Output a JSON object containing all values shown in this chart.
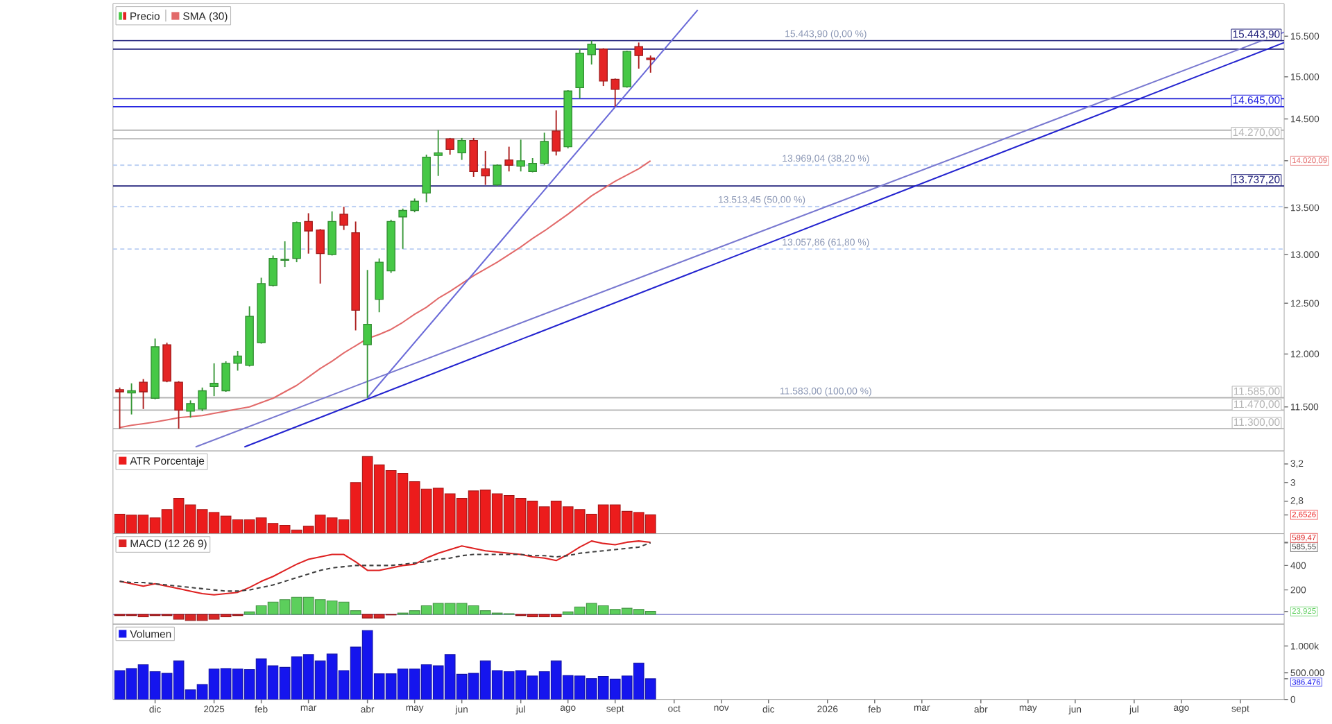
{
  "chart_data": [
    {
      "type": "candlestick",
      "x": [
        "2024-11-11",
        "2024-11-18",
        "2024-11-25",
        "2024-12-02",
        "2024-12-09",
        "2024-12-16",
        "2024-12-23",
        "2024-12-30",
        "2025-01-06",
        "2025-01-13",
        "2025-01-20",
        "2025-01-27",
        "2025-02-03",
        "2025-02-10",
        "2025-02-17",
        "2025-02-24",
        "2025-03-03",
        "2025-03-10",
        "2025-03-17",
        "2025-03-24",
        "2025-03-31",
        "2025-04-07",
        "2025-04-14",
        "2025-04-21",
        "2025-04-28",
        "2025-05-05",
        "2025-05-12",
        "2025-05-19",
        "2025-05-26",
        "2025-06-02",
        "2025-06-09",
        "2025-06-16",
        "2025-06-23",
        "2025-06-30",
        "2025-07-07",
        "2025-07-14",
        "2025-07-21",
        "2025-07-28",
        "2025-08-04",
        "2025-08-11",
        "2025-08-18",
        "2025-08-25",
        "2025-09-01",
        "2025-09-08",
        "2025-09-15",
        "2025-09-22"
      ],
      "xlim": [
        "2024-11-07",
        "2026-10-03"
      ],
      "ylim": [
        11100,
        15910
      ],
      "log": "y",
      "yticks": [
        {
          "value": 11500,
          "label": "11.500"
        },
        {
          "value": 12000,
          "label": "12.000"
        },
        {
          "value": 12500,
          "label": "12.500"
        },
        {
          "value": 13000,
          "label": "13.000"
        },
        {
          "value": 13500,
          "label": "13.500"
        },
        {
          "value": 14020.09,
          "label": "14.020,09"
        },
        {
          "value": 14500,
          "label": "14.500"
        },
        {
          "value": 15000,
          "label": "15.000"
        },
        {
          "value": 15500,
          "label": "15.500"
        }
      ],
      "tick_labels": "y",
      "legend": "top left",
      "series": [
        {
          "name": "Precio",
          "ohlc": [
            [
              11660,
              11680,
              11300,
              11640
            ],
            [
              11630,
              11720,
              11430,
              11650
            ],
            [
              11730,
              11760,
              11480,
              11640
            ],
            [
              11580,
              12150,
              11570,
              12070
            ],
            [
              12090,
              12110,
              11730,
              11740
            ],
            [
              11730,
              11740,
              11300,
              11470
            ],
            [
              11460,
              11560,
              11400,
              11530
            ],
            [
              11480,
              11680,
              11460,
              11650
            ],
            [
              11690,
              11910,
              11600,
              11720
            ],
            [
              11650,
              11930,
              11640,
              11910
            ],
            [
              11910,
              12030,
              11840,
              11980
            ],
            [
              11890,
              12470,
              11880,
              12370
            ],
            [
              12110,
              12760,
              12100,
              12700
            ],
            [
              12680,
              12990,
              12670,
              12960
            ],
            [
              12940,
              13140,
              12870,
              12950
            ],
            [
              12960,
              13350,
              12920,
              13340
            ],
            [
              13350,
              13440,
              13010,
              13250
            ],
            [
              13260,
              13270,
              12700,
              13010
            ],
            [
              13000,
              13460,
              12990,
              13350
            ],
            [
              13430,
              13510,
              13260,
              13310
            ],
            [
              13230,
              13350,
              12230,
              12430
            ],
            [
              12090,
              12840,
              11583,
              12290
            ],
            [
              12540,
              12960,
              12410,
              12920
            ],
            [
              12830,
              13370,
              12810,
              13350
            ],
            [
              13400,
              13490,
              13060,
              13470
            ],
            [
              13470,
              13600,
              13450,
              13570
            ],
            [
              13660,
              14090,
              13560,
              14060
            ],
            [
              14080,
              14370,
              13850,
              14110
            ],
            [
              14270,
              14280,
              14090,
              14150
            ],
            [
              14110,
              14280,
              14030,
              14250
            ],
            [
              14250,
              14280,
              13840,
              13900
            ],
            [
              13930,
              14130,
              13750,
              13850
            ],
            [
              13750,
              13980,
              13737.2,
              13970
            ],
            [
              14030,
              14180,
              13900,
              13970
            ],
            [
              13960,
              14260,
              13900,
              14020
            ],
            [
              13900,
              14050,
              13890,
              13990
            ],
            [
              13990,
              14340,
              13970,
              14240
            ],
            [
              14360,
              14600,
              14080,
              14130
            ],
            [
              14180,
              14840,
              14160,
              14830
            ],
            [
              14870,
              15340,
              14740,
              15290
            ],
            [
              15270,
              15443.9,
              15150,
              15400
            ],
            [
              15340,
              15350,
              14890,
              14950
            ],
            [
              14970,
              14980,
              14645,
              14850
            ],
            [
              14880,
              15320,
              14870,
              15310
            ],
            [
              15370,
              15420,
              15100,
              15260
            ],
            [
              15230,
              15260,
              15050,
              15210
            ]
          ],
          "colors": [
            "#e42424",
            "#46c846",
            "#e42424",
            "#46c846",
            "#e42424",
            "#e42424",
            "#46c846",
            "#46c846",
            "#46c846",
            "#46c846",
            "#46c846",
            "#46c846",
            "#46c846",
            "#46c846",
            "#46c846",
            "#46c846",
            "#e42424",
            "#e42424",
            "#46c846",
            "#e42424",
            "#e42424",
            "#46c846",
            "#46c846",
            "#46c846",
            "#46c846",
            "#46c846",
            "#46c846",
            "#46c846",
            "#e42424",
            "#46c846",
            "#e42424",
            "#e42424",
            "#46c846",
            "#e42424",
            "#46c846",
            "#46c846",
            "#46c846",
            "#e42424",
            "#46c846",
            "#46c846",
            "#46c846",
            "#e42424",
            "#e42424",
            "#46c846",
            "#e42424",
            "#e42424"
          ]
        },
        {
          "name": "SMA (30)",
          "type": "line",
          "color": "#e26a6a",
          "values": [
            11310,
            11330,
            11345,
            11360,
            11380,
            11400,
            11410,
            11420,
            11440,
            11460,
            11480,
            11500,
            11540,
            11580,
            11640,
            11700,
            11780,
            11860,
            11930,
            12010,
            12080,
            12150,
            12190,
            12240,
            12310,
            12390,
            12460,
            12550,
            12620,
            12700,
            12780,
            12850,
            12920,
            13000,
            13080,
            13170,
            13250,
            13340,
            13430,
            13530,
            13630,
            13710,
            13790,
            13860,
            13930,
            14020.09
          ]
        },
        {
          "type": "line",
          "color": "#6a6ad8",
          "x": [
            "2025-04-07",
            "2025-10-20"
          ],
          "values": [
            11583,
            15830
          ]
        },
        {
          "type": "line",
          "color": "#7878d0",
          "x": [
            "2024-12-26",
            "2026-10-03"
          ],
          "values": [
            11135,
            15550
          ]
        },
        {
          "type": "line",
          "color": "#2323cf",
          "x": [
            "2025-01-24",
            "2026-10-03"
          ],
          "values": [
            11135,
            15420
          ]
        }
      ],
      "ref_lines": [
        {
          "axis": "y",
          "value": 15443.9,
          "label": "15.443,90",
          "color": "#1f1f7a"
        },
        {
          "axis": "y",
          "value": 15340,
          "color": "#1f1f7a"
        },
        {
          "axis": "y",
          "value": 14740,
          "color": "#3535d8"
        },
        {
          "axis": "y",
          "value": 14645,
          "label": "14.645,00",
          "color": "#2424e0"
        },
        {
          "axis": "y",
          "value": 14370,
          "color": "#b4b4b4"
        },
        {
          "axis": "y",
          "value": 14270,
          "label": "14.270,00",
          "color": "#b4b4b4"
        },
        {
          "axis": "y",
          "value": 13969.04,
          "color": "#b8cdf2",
          "line_style": "dashed"
        },
        {
          "axis": "y",
          "value": 13737.2,
          "label": "13.737,20",
          "color": "#1f1f7a"
        },
        {
          "axis": "y",
          "value": 13513.45,
          "color": "#b8cdf2",
          "line_style": "dashed"
        },
        {
          "axis": "y",
          "value": 13057.86,
          "color": "#b8cdf2",
          "line_style": "dashed"
        },
        {
          "axis": "y",
          "value": 11585,
          "label": "11.585,00",
          "color": "#b4b4b4"
        },
        {
          "axis": "y",
          "value": 11470,
          "label": "11.470,00",
          "color": "#b4b4b4"
        },
        {
          "axis": "y",
          "value": 11300,
          "label": "11.300,00",
          "color": "#b4b4b4"
        }
      ],
      "annotations": [
        {
          "text": "15.443,90 (0,00 %)",
          "x": "2026-01-04",
          "y": 15443.9
        },
        {
          "text": "13.969,04 (38,20 %)",
          "x": "2026-01-04",
          "y": 13969.04
        },
        {
          "text": "13.513,45 (50,00 %)",
          "x": "2025-11-27",
          "y": 13513.45
        },
        {
          "text": "13.057,86 (61,80 %)",
          "x": "2026-01-04",
          "y": 13057.86
        },
        {
          "text": "11.583,00 (100,00 %)",
          "x": "2026-01-04",
          "y": 11583
        }
      ]
    },
    {
      "type": "bar",
      "x": [
        "2024-11-11",
        "2024-11-18",
        "2024-11-25",
        "2024-12-02",
        "2024-12-09",
        "2024-12-16",
        "2024-12-23",
        "2024-12-30",
        "2025-01-06",
        "2025-01-13",
        "2025-01-20",
        "2025-01-27",
        "2025-02-03",
        "2025-02-10",
        "2025-02-17",
        "2025-02-24",
        "2025-03-03",
        "2025-03-10",
        "2025-03-17",
        "2025-03-24",
        "2025-03-31",
        "2025-04-07",
        "2025-04-14",
        "2025-04-21",
        "2025-04-28",
        "2025-05-05",
        "2025-05-12",
        "2025-05-19",
        "2025-05-26",
        "2025-06-02",
        "2025-06-09",
        "2025-06-16",
        "2025-06-23",
        "2025-06-30",
        "2025-07-07",
        "2025-07-14",
        "2025-07-21",
        "2025-07-28",
        "2025-08-04",
        "2025-08-11",
        "2025-08-18",
        "2025-08-25",
        "2025-09-01",
        "2025-09-08",
        "2025-09-15",
        "2025-09-22"
      ],
      "xlim": [
        "2024-11-07",
        "2026-10-03"
      ],
      "ylim": [
        2.45,
        3.34
      ],
      "yticks": [
        {
          "value": 2.6526,
          "label": "2,6526"
        },
        {
          "value": 2.8,
          "label": "2,8"
        },
        3,
        {
          "value": 3.2,
          "label": "3,2"
        }
      ],
      "tick_labels": "y",
      "legend": "top left",
      "series": [
        {
          "name": "ATR Porcentaje",
          "color": "#ec1c1c",
          "values": [
            2.66,
            2.65,
            2.65,
            2.62,
            2.71,
            2.83,
            2.76,
            2.71,
            2.68,
            2.64,
            2.6,
            2.6,
            2.62,
            2.56,
            2.54,
            2.49,
            2.53,
            2.65,
            2.62,
            2.6,
            3.0,
            3.28,
            3.19,
            3.13,
            3.1,
            3.01,
            2.93,
            2.94,
            2.88,
            2.83,
            2.91,
            2.92,
            2.88,
            2.86,
            2.83,
            2.8,
            2.74,
            2.8,
            2.74,
            2.71,
            2.66,
            2.76,
            2.76,
            2.69,
            2.68,
            2.6526
          ]
        }
      ]
    },
    {
      "type": "line",
      "x": [
        "2024-11-11",
        "2024-11-18",
        "2024-11-25",
        "2024-12-02",
        "2024-12-09",
        "2024-12-16",
        "2024-12-23",
        "2024-12-30",
        "2025-01-06",
        "2025-01-13",
        "2025-01-20",
        "2025-01-27",
        "2025-02-03",
        "2025-02-10",
        "2025-02-17",
        "2025-02-24",
        "2025-03-03",
        "2025-03-10",
        "2025-03-17",
        "2025-03-24",
        "2025-03-31",
        "2025-04-07",
        "2025-04-14",
        "2025-04-21",
        "2025-04-28",
        "2025-05-05",
        "2025-05-12",
        "2025-05-19",
        "2025-05-26",
        "2025-06-02",
        "2025-06-09",
        "2025-06-16",
        "2025-06-23",
        "2025-06-30",
        "2025-07-07",
        "2025-07-14",
        "2025-07-21",
        "2025-07-28",
        "2025-08-04",
        "2025-08-11",
        "2025-08-18",
        "2025-08-25",
        "2025-09-01",
        "2025-09-08",
        "2025-09-15",
        "2025-09-22"
      ],
      "xlim": [
        "2024-11-07",
        "2026-10-03"
      ],
      "ylim": [
        -80,
        660
      ],
      "yticks": [
        {
          "value": 23.925,
          "label": "23,925"
        },
        200,
        400,
        {
          "value": 585.55,
          "label": "585,55"
        },
        {
          "value": 589.47,
          "label": "589,47"
        }
      ],
      "tick_labels": "y",
      "legend": "top left",
      "series": [
        {
          "name": "MACD (12 26 9)",
          "color": "#de2222",
          "values": [
            270,
            250,
            230,
            250,
            230,
            210,
            190,
            170,
            160,
            170,
            180,
            220,
            270,
            310,
            360,
            410,
            450,
            470,
            490,
            490,
            430,
            360,
            360,
            380,
            400,
            410,
            460,
            500,
            530,
            560,
            540,
            520,
            510,
            500,
            490,
            470,
            460,
            440,
            490,
            550,
            600,
            580,
            570,
            590,
            600,
            589.47
          ]
        },
        {
          "color": "#404040",
          "line_style": "dashed",
          "values": [
            270,
            260,
            260,
            250,
            240,
            230,
            220,
            210,
            200,
            190,
            190,
            200,
            220,
            240,
            270,
            300,
            330,
            360,
            380,
            390,
            400,
            400,
            400,
            400,
            410,
            420,
            430,
            450,
            460,
            480,
            490,
            490,
            490,
            490,
            490,
            480,
            480,
            470,
            480,
            500,
            510,
            520,
            530,
            540,
            550,
            585.55
          ]
        },
        {
          "type": "bar",
          "colors": [
            "#d92626",
            "#d92626",
            "#d92626",
            "#d92626",
            "#d92626",
            "#d92626",
            "#d92626",
            "#d92626",
            "#d92626",
            "#d92626",
            "#d92626",
            "#5ccf5c",
            "#5ccf5c",
            "#5ccf5c",
            "#5ccf5c",
            "#5ccf5c",
            "#5ccf5c",
            "#5ccf5c",
            "#5ccf5c",
            "#5ccf5c",
            "#5ccf5c",
            "#d92626",
            "#d92626",
            "#d92626",
            "#5ccf5c",
            "#5ccf5c",
            "#5ccf5c",
            "#5ccf5c",
            "#5ccf5c",
            "#5ccf5c",
            "#5ccf5c",
            "#5ccf5c",
            "#5ccf5c",
            "#5ccf5c",
            "#d92626",
            "#d92626",
            "#d92626",
            "#d92626",
            "#5ccf5c",
            "#5ccf5c",
            "#5ccf5c",
            "#5ccf5c",
            "#5ccf5c",
            "#5ccf5c",
            "#5ccf5c",
            "#5ccf5c"
          ],
          "values": [
            -10,
            -10,
            -20,
            -10,
            -10,
            -40,
            -50,
            -50,
            -40,
            -20,
            -10,
            20,
            70,
            100,
            120,
            140,
            140,
            120,
            110,
            100,
            30,
            -30,
            -30,
            -5,
            10,
            30,
            70,
            90,
            90,
            90,
            70,
            30,
            10,
            5,
            -10,
            -20,
            -20,
            -20,
            20,
            60,
            90,
            70,
            40,
            50,
            40,
            23.925
          ]
        }
      ],
      "ref_lines": [
        {
          "axis": "y",
          "value": 0,
          "color": "#8c8cd2"
        }
      ]
    },
    {
      "type": "bar",
      "x": [
        "2024-11-11",
        "2024-11-18",
        "2024-11-25",
        "2024-12-02",
        "2024-12-09",
        "2024-12-16",
        "2024-12-23",
        "2024-12-30",
        "2025-01-06",
        "2025-01-13",
        "2025-01-20",
        "2025-01-27",
        "2025-02-03",
        "2025-02-10",
        "2025-02-17",
        "2025-02-24",
        "2025-03-03",
        "2025-03-10",
        "2025-03-17",
        "2025-03-24",
        "2025-03-31",
        "2025-04-07",
        "2025-04-14",
        "2025-04-21",
        "2025-04-28",
        "2025-05-05",
        "2025-05-12",
        "2025-05-19",
        "2025-05-26",
        "2025-06-02",
        "2025-06-09",
        "2025-06-16",
        "2025-06-23",
        "2025-06-30",
        "2025-07-07",
        "2025-07-14",
        "2025-07-21",
        "2025-07-28",
        "2025-08-04",
        "2025-08-11",
        "2025-08-18",
        "2025-08-25",
        "2025-09-01",
        "2025-09-08",
        "2025-09-15",
        "2025-09-22"
      ],
      "xlim": [
        "2024-11-07",
        "2026-10-03"
      ],
      "ylim": [
        0,
        1410000
      ],
      "xticks": [
        {
          "value": "2024-12-02",
          "label": "dic"
        },
        {
          "value": "2025-01-06",
          "label": "2025"
        },
        {
          "value": "2025-02-03",
          "label": "feb"
        },
        {
          "value": "2025-03-03",
          "label": "mar"
        },
        {
          "value": "2025-04-07",
          "label": "abr"
        },
        {
          "value": "2025-05-05",
          "label": "may"
        },
        {
          "value": "2025-06-02",
          "label": "jun"
        },
        {
          "value": "2025-07-07",
          "label": "jul"
        },
        {
          "value": "2025-08-04",
          "label": "ago"
        },
        {
          "value": "2025-09-01",
          "label": "sept"
        },
        {
          "value": "2025-10-06",
          "label": "oct"
        },
        {
          "value": "2025-11-03",
          "label": "nov"
        },
        {
          "value": "2025-12-01",
          "label": "dic"
        },
        {
          "value": "2026-01-05",
          "label": "2026"
        },
        {
          "value": "2026-02-02",
          "label": "feb"
        },
        {
          "value": "2026-03-02",
          "label": "mar"
        },
        {
          "value": "2026-04-06",
          "label": "abr"
        },
        {
          "value": "2026-05-04",
          "label": "may"
        },
        {
          "value": "2026-06-01",
          "label": "jun"
        },
        {
          "value": "2026-07-06",
          "label": "jul"
        },
        {
          "value": "2026-08-03",
          "label": "ago"
        },
        {
          "value": "2026-09-07",
          "label": "sept"
        }
      ],
      "yticks": [
        0,
        {
          "value": 386476,
          "label": "386.476"
        },
        {
          "value": 500000,
          "label": "500.000"
        },
        {
          "value": 1000000,
          "label": "1.000k"
        }
      ],
      "legend": "top left",
      "series": [
        {
          "name": "Volumen",
          "color": "#1515ee",
          "values": [
            540000,
            580000,
            650000,
            520000,
            490000,
            720000,
            180000,
            280000,
            570000,
            580000,
            570000,
            560000,
            760000,
            630000,
            600000,
            800000,
            840000,
            720000,
            850000,
            540000,
            980000,
            1290000,
            480000,
            480000,
            570000,
            570000,
            650000,
            630000,
            840000,
            470000,
            490000,
            720000,
            540000,
            520000,
            540000,
            440000,
            520000,
            720000,
            450000,
            440000,
            390000,
            430000,
            380000,
            440000,
            680000,
            386476
          ]
        }
      ]
    }
  ]
}
